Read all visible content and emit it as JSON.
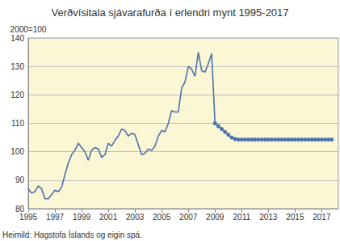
{
  "chart_data": {
    "type": "line",
    "title": "Verðvísitala sjávarafurða í erlendri mynt 1995-2017",
    "ylabel": "2000=100",
    "source": "Heimild: Hagstofa Íslands og eigin spá.",
    "x": [
      1995,
      1995.25,
      1995.5,
      1995.75,
      1996,
      1996.25,
      1996.5,
      1996.75,
      1997,
      1997.25,
      1997.5,
      1997.75,
      1998,
      1998.25,
      1998.5,
      1998.75,
      1999,
      1999.25,
      1999.5,
      1999.75,
      2000,
      2000.25,
      2000.5,
      2000.75,
      2001,
      2001.25,
      2001.5,
      2001.75,
      2002,
      2002.25,
      2002.5,
      2002.75,
      2003,
      2003.25,
      2003.5,
      2003.75,
      2004,
      2004.25,
      2004.5,
      2004.75,
      2005,
      2005.25,
      2005.5,
      2005.75,
      2006,
      2006.25,
      2006.5,
      2006.75,
      2007,
      2007.25,
      2007.5,
      2007.75,
      2008,
      2008.25,
      2008.5,
      2008.75,
      2009,
      2009.25,
      2009.5,
      2009.75,
      2010,
      2010.25,
      2010.5,
      2010.75,
      2011,
      2011.25,
      2011.5,
      2011.75,
      2012,
      2012.25,
      2012.5,
      2012.75,
      2013,
      2013.25,
      2013.5,
      2013.75,
      2014,
      2014.25,
      2014.5,
      2014.75,
      2015,
      2015.25,
      2015.5,
      2015.75,
      2016,
      2016.25,
      2016.5,
      2016.75,
      2017,
      2017.25,
      2017.5,
      2017.75
    ],
    "series": [
      {
        "color": "#4a72b0",
        "marker": "none",
        "line_style": "solid",
        "values": [
          87,
          85.5,
          86,
          88,
          87,
          83.5,
          83.5,
          85,
          86.5,
          86,
          87.5,
          92,
          96,
          99,
          100.5,
          103,
          101.5,
          100,
          97,
          100.5,
          101.5,
          101,
          98,
          99,
          103,
          102,
          104,
          105.5,
          108,
          107.5,
          105.5,
          106.5,
          106,
          102.5,
          99,
          99.5,
          101,
          100.5,
          102,
          105.5,
          107.5,
          107,
          110,
          114.5,
          114,
          114,
          122.5,
          124.5,
          130,
          129,
          126.5,
          135,
          128.5,
          128,
          131,
          134.5,
          110,
          null,
          null,
          null,
          null,
          null,
          null,
          null,
          null,
          null,
          null,
          null,
          null,
          null,
          null,
          null,
          null,
          null,
          null,
          null,
          null,
          null,
          null,
          null,
          null,
          null,
          null,
          null,
          null,
          null,
          null,
          null,
          null,
          null,
          null,
          null
        ]
      },
      {
        "color": "#4a72b0",
        "marker": "circle",
        "line_style": "solid",
        "values": [
          null,
          null,
          null,
          null,
          null,
          null,
          null,
          null,
          null,
          null,
          null,
          null,
          null,
          null,
          null,
          null,
          null,
          null,
          null,
          null,
          null,
          null,
          null,
          null,
          null,
          null,
          null,
          null,
          null,
          null,
          null,
          null,
          null,
          null,
          null,
          null,
          null,
          null,
          null,
          null,
          null,
          null,
          null,
          null,
          null,
          null,
          null,
          null,
          null,
          null,
          null,
          null,
          null,
          null,
          null,
          null,
          110,
          109,
          108,
          107,
          106,
          105,
          104.5,
          104.3,
          104.3,
          104.3,
          104.3,
          104.3,
          104.3,
          104.3,
          104.3,
          104.3,
          104.3,
          104.3,
          104.3,
          104.3,
          104.3,
          104.3,
          104.3,
          104.3,
          104.3,
          104.3,
          104.3,
          104.3,
          104.3,
          104.3,
          104.3,
          104.3,
          104.3,
          104.3,
          104.3,
          104.3
        ]
      }
    ],
    "xlim": [
      1995,
      2018.25
    ],
    "xticks": [
      1995,
      1997,
      1999,
      2001,
      2003,
      2005,
      2007,
      2009,
      2011,
      2013,
      2015,
      2017
    ],
    "ylim": [
      80,
      140
    ],
    "yticks": [
      80,
      90,
      100,
      110,
      120,
      130,
      140
    ],
    "grid": true
  }
}
